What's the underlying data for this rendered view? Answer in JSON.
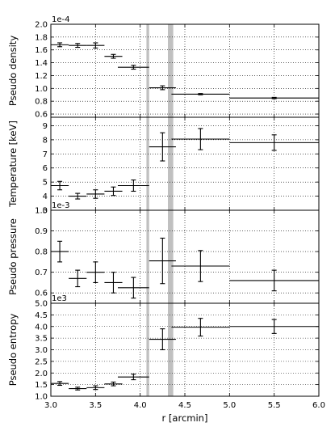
{
  "chart_data": [
    {
      "type": "errorbar",
      "ylabel": "Pseudo density",
      "offset_text": "1e-4",
      "ylim": [
        0.55,
        2.0
      ],
      "yticks": [
        "0.6",
        "0.8",
        "1.0",
        "1.2",
        "1.4",
        "1.6",
        "1.8",
        "2.0"
      ],
      "points": [
        {
          "x": 3.1,
          "xerr": 0.1,
          "y": 1.68,
          "yerr": 0.03
        },
        {
          "x": 3.3,
          "xerr": 0.1,
          "y": 1.67,
          "yerr": 0.03
        },
        {
          "x": 3.5,
          "xerr": 0.1,
          "y": 1.67,
          "yerr": 0.04
        },
        {
          "x": 3.7,
          "xerr": 0.1,
          "y": 1.5,
          "yerr": 0.03
        },
        {
          "x": 3.925,
          "xerr": 0.175,
          "y": 1.33,
          "yerr": 0.03
        },
        {
          "x": 4.25,
          "xerr": 0.15,
          "y": 1.01,
          "yerr": 0.03
        },
        {
          "x": 4.675,
          "xerr": 0.325,
          "y": 0.91,
          "yerr": 0.01
        },
        {
          "x": 5.5,
          "xerr": 0.5,
          "y": 0.85,
          "yerr": 0.01
        }
      ]
    },
    {
      "type": "errorbar",
      "ylabel": "Temperature [keV]",
      "offset_text": "",
      "ylim": [
        3.0,
        9.6
      ],
      "yticks": [
        "3",
        "4",
        "5",
        "6",
        "7",
        "8",
        "9"
      ],
      "points": [
        {
          "x": 3.1,
          "xerr": 0.1,
          "y": 4.75,
          "yerr": 0.3
        },
        {
          "x": 3.3,
          "xerr": 0.1,
          "y": 4.0,
          "yerr": 0.2
        },
        {
          "x": 3.5,
          "xerr": 0.1,
          "y": 4.15,
          "yerr": 0.3
        },
        {
          "x": 3.7,
          "xerr": 0.1,
          "y": 4.35,
          "yerr": 0.3
        },
        {
          "x": 3.925,
          "xerr": 0.175,
          "y": 4.75,
          "yerr": 0.4
        },
        {
          "x": 4.25,
          "xerr": 0.15,
          "y": 7.5,
          "yerr": 1.0
        },
        {
          "x": 4.675,
          "xerr": 0.325,
          "y": 8.05,
          "yerr": 0.75
        },
        {
          "x": 5.5,
          "xerr": 0.5,
          "y": 7.8,
          "yerr": 0.55
        }
      ]
    },
    {
      "type": "errorbar",
      "ylabel": "Pseudo pressure",
      "offset_text": "1e-3",
      "ylim": [
        0.55,
        1.0
      ],
      "yticks": [
        "0.6",
        "0.7",
        "0.8",
        "0.9",
        "1.0"
      ],
      "points": [
        {
          "x": 3.1,
          "xerr": 0.1,
          "y": 0.8,
          "yerr": 0.05
        },
        {
          "x": 3.3,
          "xerr": 0.1,
          "y": 0.67,
          "yerr": 0.04
        },
        {
          "x": 3.5,
          "xerr": 0.1,
          "y": 0.7,
          "yerr": 0.05
        },
        {
          "x": 3.7,
          "xerr": 0.1,
          "y": 0.65,
          "yerr": 0.05
        },
        {
          "x": 3.925,
          "xerr": 0.175,
          "y": 0.625,
          "yerr": 0.05
        },
        {
          "x": 4.25,
          "xerr": 0.15,
          "y": 0.755,
          "yerr": 0.11
        },
        {
          "x": 4.675,
          "xerr": 0.325,
          "y": 0.73,
          "yerr": 0.075
        },
        {
          "x": 5.5,
          "xerr": 0.5,
          "y": 0.66,
          "yerr": 0.05
        }
      ]
    },
    {
      "type": "errorbar",
      "ylabel": "Pseudo entropy",
      "offset_text": "1e3",
      "ylim": [
        1.0,
        5.0
      ],
      "yticks": [
        "1.0",
        "1.5",
        "2.0",
        "2.5",
        "3.0",
        "3.5",
        "4.0",
        "4.5",
        "5.0"
      ],
      "xlabel": "r [arcmin]",
      "xlim": [
        3.0,
        6.0
      ],
      "xticks": [
        "3.0",
        "3.5",
        "4.0",
        "4.5",
        "5.0",
        "5.5",
        "6.0"
      ],
      "points": [
        {
          "x": 3.1,
          "xerr": 0.1,
          "y": 1.55,
          "yerr": 0.08
        },
        {
          "x": 3.3,
          "xerr": 0.1,
          "y": 1.33,
          "yerr": 0.06
        },
        {
          "x": 3.5,
          "xerr": 0.1,
          "y": 1.37,
          "yerr": 0.08
        },
        {
          "x": 3.7,
          "xerr": 0.1,
          "y": 1.53,
          "yerr": 0.08
        },
        {
          "x": 3.925,
          "xerr": 0.175,
          "y": 1.83,
          "yerr": 0.12
        },
        {
          "x": 4.25,
          "xerr": 0.15,
          "y": 3.45,
          "yerr": 0.45
        },
        {
          "x": 4.675,
          "xerr": 0.325,
          "y": 3.97,
          "yerr": 0.38
        },
        {
          "x": 5.5,
          "xerr": 0.5,
          "y": 4.0,
          "yerr": 0.3
        }
      ]
    }
  ],
  "shaded_bands": [
    {
      "x0": 4.07,
      "x1": 4.1
    },
    {
      "x0": 4.31,
      "x1": 4.37
    }
  ],
  "colors": {
    "band": "#c0c0c0",
    "line": "#000000",
    "grid": "#000000"
  }
}
